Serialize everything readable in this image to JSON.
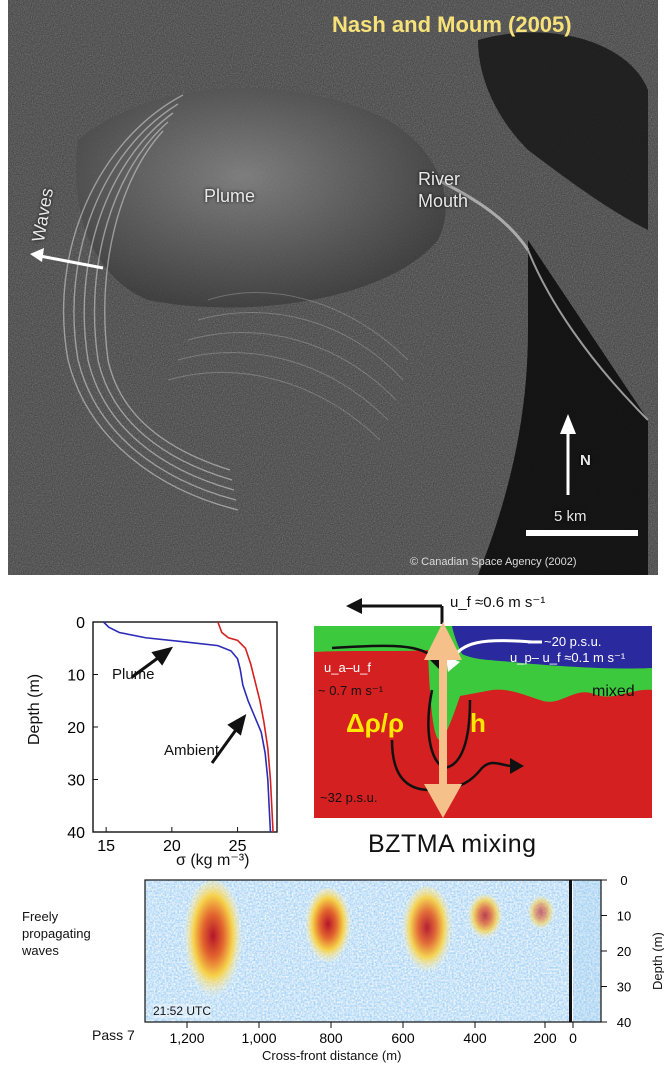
{
  "satellite": {
    "title": "Nash and Moum (2005)",
    "labels": {
      "waves": "Waves",
      "plume": "Plume",
      "river_mouth": "River\nMouth",
      "north": "N",
      "scale": "5 km"
    },
    "credit": "© Canadian Space Agency (2002)"
  },
  "profile": {
    "ylabel": "Depth (m)",
    "xlabel": "σ (kg m⁻³)",
    "labels": {
      "plume": "Plume",
      "ambient": "Ambient"
    },
    "colors": {
      "plume": "#2b2bb8",
      "ambient": "#d42020"
    }
  },
  "chart_data": {
    "type": "line",
    "xlabel": "σ (kg m⁻³)",
    "ylabel": "Depth (m)",
    "xlim": [
      14,
      28
    ],
    "ylim": [
      0,
      40
    ],
    "x_ticks": [
      "15",
      "20",
      "25"
    ],
    "y_ticks": [
      "0",
      "10",
      "20",
      "30",
      "40"
    ],
    "y_inverted": true,
    "series": [
      {
        "name": "Plume",
        "points": [
          [
            14.8,
            0
          ],
          [
            15.2,
            1
          ],
          [
            16,
            2
          ],
          [
            18,
            3
          ],
          [
            21,
            3.8
          ],
          [
            23.5,
            4.5
          ],
          [
            24.5,
            5.5
          ],
          [
            25,
            7
          ],
          [
            25.2,
            9
          ],
          [
            25.4,
            12
          ],
          [
            25.8,
            15
          ],
          [
            26.3,
            18
          ],
          [
            26.8,
            21
          ],
          [
            27.1,
            25
          ],
          [
            27.3,
            30
          ],
          [
            27.4,
            35
          ],
          [
            27.5,
            40
          ]
        ],
        "color": "#2b2bb8"
      },
      {
        "name": "Ambient",
        "points": [
          [
            23.5,
            0
          ],
          [
            23.8,
            2
          ],
          [
            24.3,
            3
          ],
          [
            25,
            3.5
          ],
          [
            25.6,
            5
          ],
          [
            26,
            8
          ],
          [
            26.3,
            11
          ],
          [
            26.7,
            15
          ],
          [
            27,
            19
          ],
          [
            27.3,
            24
          ],
          [
            27.5,
            30
          ],
          [
            27.6,
            35
          ],
          [
            27.7,
            40
          ]
        ],
        "color": "#d42020"
      }
    ]
  },
  "schematic": {
    "uf": "u_f ≈0.6 m s⁻¹",
    "psu20": "~20 p.s.u.",
    "upuf": "u_p– u_f ≈0.1 m s⁻¹",
    "uauf": "u_a–u_f",
    "ms07": "~ 0.7 m s⁻¹",
    "mixed": "mixed",
    "drho": "Δρ/ρ",
    "h": "h",
    "psu32": "~32 p.s.u.",
    "colors": {
      "plume": "#2a2a9e",
      "mixed": "#3dc93d",
      "ambient": "#d42020",
      "arrow": "#f5c08a"
    }
  },
  "bztma_title": "BZTMA mixing",
  "echogram": {
    "left_label": "Freely\npropagating\nwaves",
    "time": "21:52 UTC",
    "pass": "Pass 7",
    "x_ticks": [
      "1,200",
      "1,000",
      "800",
      "600",
      "400",
      "200",
      "0"
    ],
    "xlabel": "Cross-front distance (m)",
    "y_ticks": [
      "0",
      "10",
      "20",
      "30",
      "40"
    ],
    "ylabel": "Depth (m)"
  }
}
